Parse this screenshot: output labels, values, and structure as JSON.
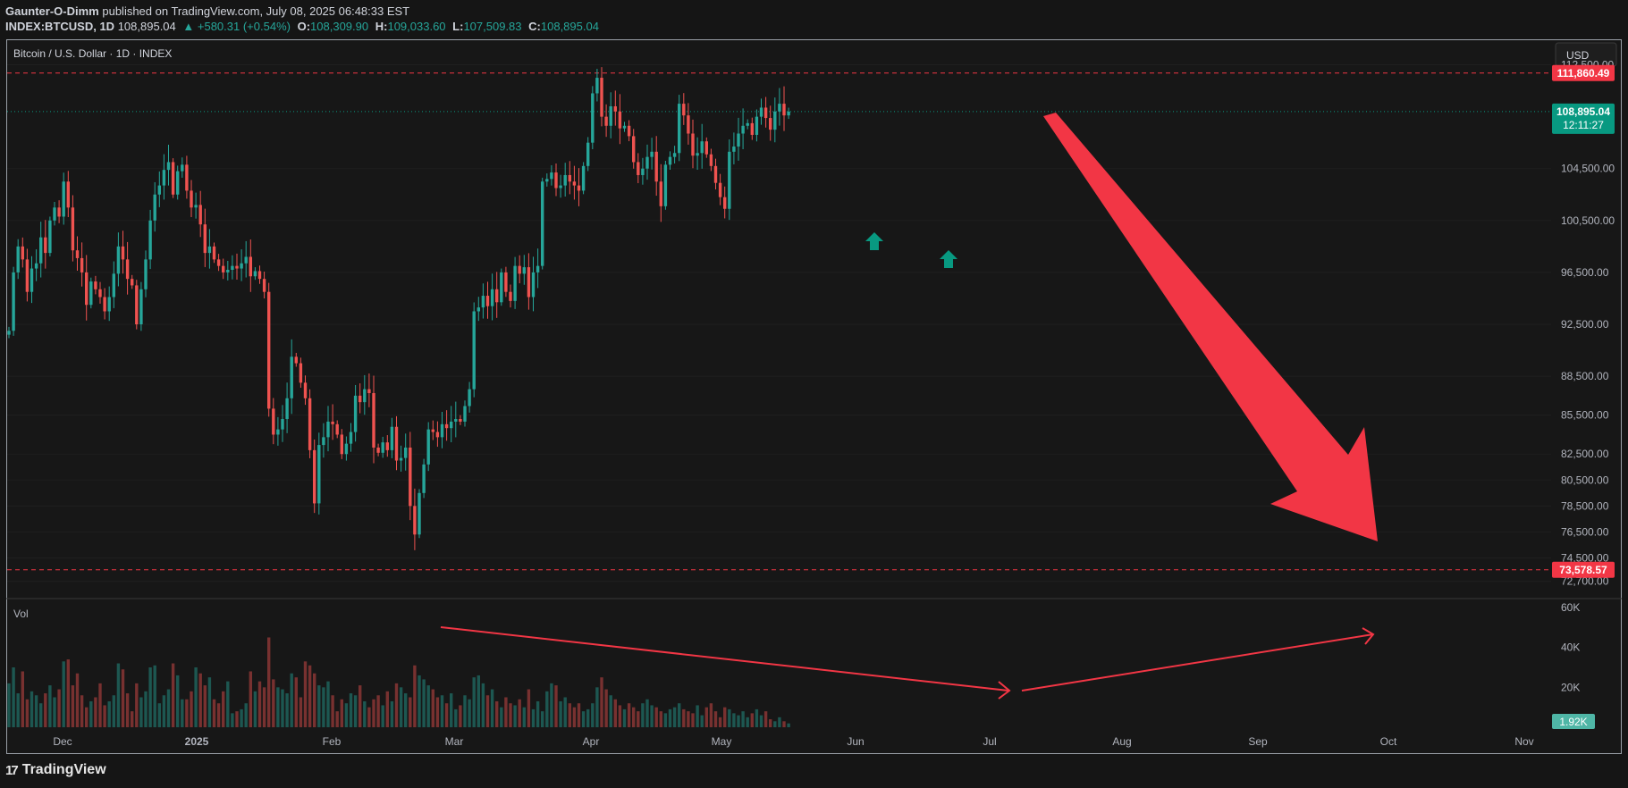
{
  "header": {
    "author": "Gaunter-O-Dimm",
    "published": "published on TradingView.com, July 08, 2025 06:48:33 EST",
    "symbol": "INDEX:BTCUSD, 1D",
    "price": "108,895.04",
    "change": "▲ +580.31 (+0.54%)",
    "o_label": "O:",
    "o_value": "108,309.90",
    "h_label": "H:",
    "h_value": "109,033.60",
    "l_label": "L:",
    "l_value": "107,509.83",
    "c_label": "C:",
    "c_value": "108,895.04"
  },
  "chart_title": "Bitcoin / U.S. Dollar · 1D · INDEX",
  "currency_button": "USD",
  "volume_label": "Vol",
  "footer_brand": "TradingView",
  "colors": {
    "up": "#26a69a",
    "down": "#ef5350",
    "accent_red": "#f23645",
    "teal": "#089981"
  },
  "chart_data": {
    "type": "candlestick",
    "price_axis_ticks": [
      "112,500.00",
      "104,500.00",
      "100,500.00",
      "96,500.00",
      "92,500.00",
      "88,500.00",
      "85,500.00",
      "82,500.00",
      "80,500.00",
      "78,500.00",
      "76,500.00",
      "74,500.00",
      "72,700.00"
    ],
    "price_ylim": [
      71500,
      113500
    ],
    "volume_axis_ticks": [
      "60K",
      "40K",
      "20K"
    ],
    "volume_ylim": [
      0,
      60000
    ],
    "time_axis_ticks": [
      "Dec",
      "2025",
      "Feb",
      "Mar",
      "Apr",
      "May",
      "Jun",
      "Jul",
      "Aug",
      "Sep",
      "Oct",
      "Nov"
    ],
    "price_levels": [
      {
        "label": "111,860.49",
        "value": 111860.49,
        "color": "#f23645"
      },
      {
        "label": "73,578.57",
        "value": 73578.57,
        "color": "#f23645"
      }
    ],
    "last_price": {
      "label": "108,895.04",
      "countdown": "12:11:27",
      "value": 108895.04,
      "color": "#089981"
    },
    "last_volume_label": "1.92K",
    "closes": [
      92000,
      96500,
      98500,
      97500,
      95000,
      96800,
      97200,
      99200,
      98000,
      100500,
      101500,
      100800,
      103500,
      101500,
      98200,
      97600,
      96500,
      94000,
      95800,
      95200,
      94600,
      93500,
      94600,
      96400,
      98500,
      97500,
      96000,
      95500,
      92500,
      95200,
      97500,
      100500,
      102500,
      103200,
      104400,
      105000,
      102500,
      104300,
      104800,
      102800,
      101500,
      101700,
      100200,
      98000,
      98500,
      97500,
      97000,
      96500,
      96700,
      97000,
      96800,
      97200,
      97700,
      96200,
      96600,
      96000,
      95000,
      86000,
      84000,
      84400,
      85200,
      86800,
      90000,
      89500,
      88000,
      86800,
      82800,
      78700,
      83200,
      83800,
      85000,
      84800,
      84000,
      82500,
      83300,
      84200,
      87000,
      86500,
      87500,
      87200,
      83000,
      82600,
      83400,
      82800,
      84600,
      82000,
      82200,
      83000,
      78500,
      76300,
      79500,
      81700,
      84400,
      84200,
      83800,
      84800,
      84500,
      85000,
      85200,
      85000,
      86200,
      87500,
      93500,
      93800,
      94700,
      93900,
      95200,
      94200,
      96500,
      95000,
      94300,
      97000,
      96400,
      96900,
      94600,
      96500,
      97000,
      103500,
      103700,
      104200,
      103000,
      103200,
      104000,
      103500,
      103200,
      102800,
      104700,
      106500,
      110300,
      111500,
      108500,
      107800,
      109300,
      108900,
      107600,
      107800,
      107000,
      105000,
      104000,
      104500,
      105400,
      105800,
      103500,
      101600,
      104800,
      105400,
      105700,
      109500,
      108600,
      107200,
      105500,
      105700,
      106600,
      105600,
      104700,
      103400,
      102300,
      101400,
      105800,
      106200,
      107200,
      107800,
      108000,
      107100,
      108500,
      109200,
      108400,
      107500,
      108900,
      109500,
      108600,
      108895.04
    ],
    "volumes": [
      22000,
      30000,
      17000,
      28000,
      14000,
      18000,
      16000,
      12000,
      17000,
      21000,
      15000,
      19000,
      33000,
      34000,
      21000,
      27000,
      16000,
      10000,
      13000,
      15000,
      22000,
      11000,
      13000,
      16000,
      32000,
      29000,
      17000,
      8000,
      22000,
      15000,
      18000,
      30000,
      31000,
      12000,
      16000,
      19000,
      32000,
      26000,
      14000,
      14000,
      18000,
      30000,
      27000,
      21000,
      25000,
      14000,
      12000,
      18000,
      23000,
      7000,
      8000,
      9000,
      12000,
      28000,
      18000,
      23000,
      20000,
      45000,
      24000,
      20000,
      19000,
      17000,
      27000,
      25000,
      15000,
      33000,
      31000,
      27000,
      21000,
      20000,
      23000,
      16000,
      8000,
      14000,
      12000,
      17000,
      16000,
      21000,
      13000,
      10000,
      14000,
      16000,
      11000,
      18000,
      13000,
      22000,
      20000,
      17000,
      15000,
      31000,
      26000,
      24000,
      21000,
      19000,
      15000,
      16000,
      12000,
      17000,
      9000,
      11000,
      16000,
      14000,
      25000,
      26000,
      22000,
      16000,
      19000,
      13000,
      10000,
      15000,
      12000,
      11000,
      14000,
      10000,
      19000,
      9000,
      13000,
      8000,
      18000,
      22000,
      21000,
      13000,
      15000,
      12000,
      10000,
      12000,
      8000,
      9000,
      12000,
      20000,
      25000,
      19000,
      16000,
      14000,
      11000,
      9000,
      12000,
      10000,
      8000,
      12000,
      14000,
      11000,
      10000,
      8000,
      7000,
      9000,
      10000,
      12000,
      9000,
      8000,
      7000,
      11000,
      6000,
      10000,
      12000,
      8000,
      5000,
      10000,
      9000,
      7000,
      6000,
      8000,
      5000,
      7000,
      9000,
      6000,
      8000,
      4000,
      3000,
      5000,
      3000,
      1920
    ]
  }
}
